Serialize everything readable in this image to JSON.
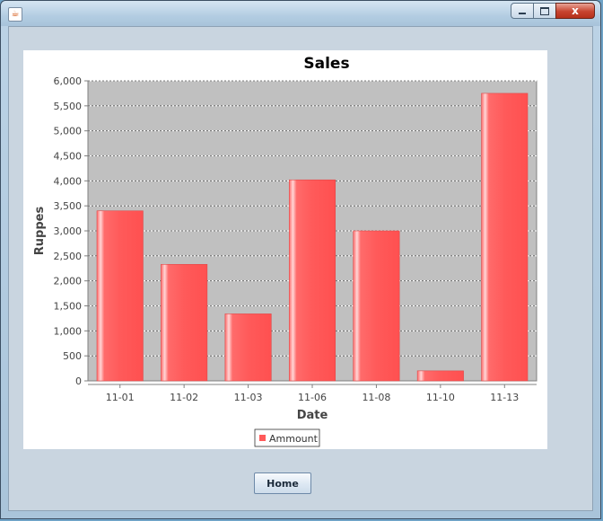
{
  "window": {
    "title": "",
    "minimize_glyph": "minimize-icon",
    "maximize_glyph": "maximize-icon",
    "close_label": "x"
  },
  "home_button": {
    "label": "Home"
  },
  "chart_data": {
    "type": "bar",
    "title": "Sales",
    "xlabel": "Date",
    "ylabel": "Ruppes",
    "categories": [
      "11-01",
      "11-02",
      "11-03",
      "11-06",
      "11-08",
      "11-10",
      "11-13"
    ],
    "series": [
      {
        "name": "Ammount",
        "values": [
          3400,
          2330,
          1340,
          4020,
          3000,
          200,
          5750
        ]
      }
    ],
    "ylim": [
      0,
      6000
    ],
    "yticks": [
      0,
      500,
      1000,
      1500,
      2000,
      2500,
      3000,
      3500,
      4000,
      4500,
      5000,
      5500,
      6000
    ],
    "grid": true,
    "legend_position": "bottom",
    "colors": {
      "bar": "#ff5a5a",
      "bar_highlight": "#ffd0d0",
      "plot_bg": "#c0c0c0"
    }
  }
}
